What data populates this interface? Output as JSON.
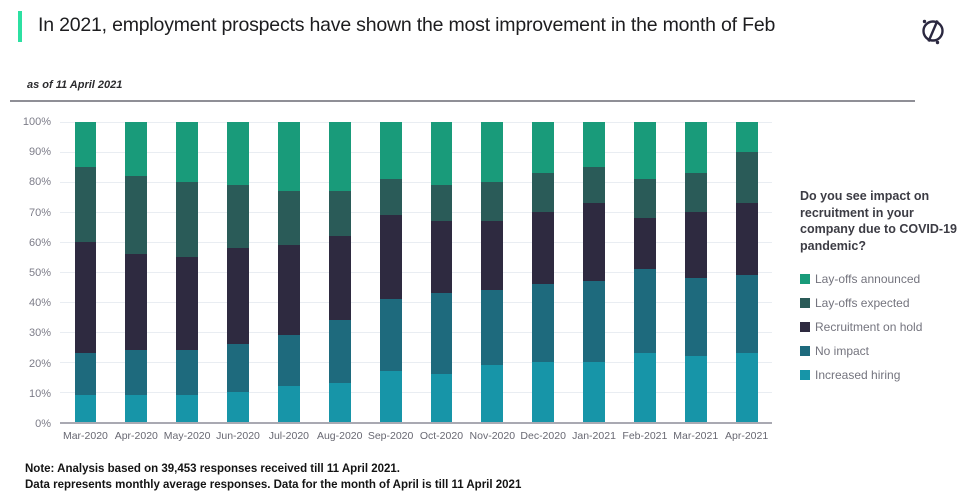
{
  "header": {
    "title": "In 2021, employment prospects have shown the most improvement in the month of Feb",
    "subtitle": "as of 11 April 2021"
  },
  "legend": {
    "question": "Do you see impact on recruitment in your company due to COVID-19 pandemic?",
    "items": [
      {
        "key": "layoffs-announced",
        "label": "Lay-offs announced",
        "color": "#199b7a"
      },
      {
        "key": "layoffs-expected",
        "label": "Lay-offs expected",
        "color": "#2a5b58"
      },
      {
        "key": "recruitment-on-hold",
        "label": "Recruitment on hold",
        "color": "#2e2a40"
      },
      {
        "key": "no-impact",
        "label": "No impact",
        "color": "#1e6a7d"
      },
      {
        "key": "increased-hiring",
        "label": "Increased hiring",
        "color": "#1795a8"
      }
    ]
  },
  "notes": {
    "line1": "Note: Analysis based on 39,453 responses received till 11 April 2021.",
    "line2": "Data represents monthly average responses. Data for the month of April is till 11 April 2021"
  },
  "icon": {
    "name": "brand-logo",
    "color": "#2b2840"
  },
  "chart_data": {
    "type": "bar",
    "stacked": true,
    "title": "",
    "xlabel": "",
    "ylabel": "",
    "ylim": [
      0,
      100
    ],
    "grid": true,
    "legend_position": "right",
    "y_ticks": [
      "100%",
      "90%",
      "80%",
      "70%",
      "60%",
      "50%",
      "40%",
      "30%",
      "20%",
      "10%",
      "0%"
    ],
    "categories": [
      "Mar-2020",
      "Apr-2020",
      "May-2020",
      "Jun-2020",
      "Jul-2020",
      "Aug-2020",
      "Sep-2020",
      "Oct-2020",
      "Nov-2020",
      "Dec-2020",
      "Jan-2021",
      "Feb-2021",
      "Mar-2021",
      "Apr-2021"
    ],
    "series": [
      {
        "key": "increased-hiring",
        "name": "Increased hiring",
        "color": "#1795a8",
        "values": [
          9,
          9,
          9,
          10,
          12,
          13,
          17,
          16,
          19,
          20,
          20,
          23,
          22,
          23
        ]
      },
      {
        "key": "no-impact",
        "name": "No impact",
        "color": "#1e6a7d",
        "values": [
          14,
          15,
          15,
          16,
          17,
          21,
          24,
          27,
          25,
          26,
          27,
          28,
          26,
          26
        ]
      },
      {
        "key": "recruitment-on-hold",
        "name": "Recruitment on hold",
        "color": "#2e2a40",
        "values": [
          37,
          32,
          31,
          32,
          30,
          28,
          28,
          24,
          23,
          24,
          26,
          17,
          22,
          24
        ]
      },
      {
        "key": "layoffs-expected",
        "name": "Lay-offs expected",
        "color": "#2a5b58",
        "values": [
          25,
          26,
          25,
          21,
          18,
          15,
          12,
          12,
          13,
          13,
          12,
          13,
          13,
          17
        ]
      },
      {
        "key": "layoffs-announced",
        "name": "Lay-offs announced",
        "color": "#199b7a",
        "values": [
          15,
          18,
          20,
          21,
          23,
          23,
          19,
          21,
          20,
          17,
          15,
          19,
          17,
          10
        ]
      }
    ]
  }
}
